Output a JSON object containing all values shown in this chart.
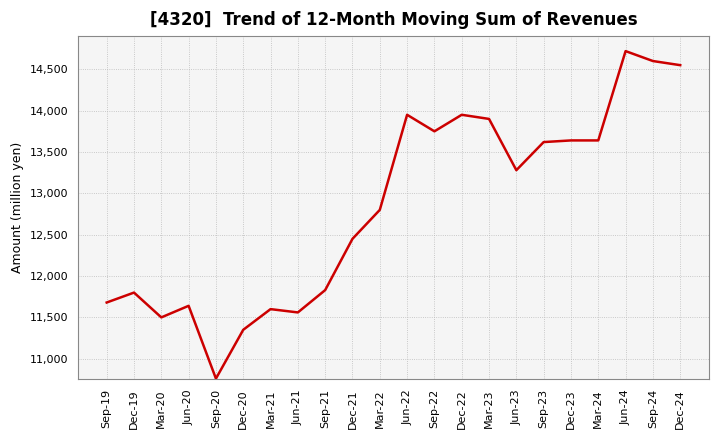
{
  "title": "[4320]  Trend of 12-Month Moving Sum of Revenues",
  "ylabel": "Amount (million yen)",
  "line_color": "#cc0000",
  "background_color": "#ffffff",
  "plot_bg_color": "#f5f5f5",
  "grid_color": "#bbbbbb",
  "x_labels": [
    "Sep-19",
    "Dec-19",
    "Mar-20",
    "Jun-20",
    "Sep-20",
    "Dec-20",
    "Mar-21",
    "Jun-21",
    "Sep-21",
    "Dec-21",
    "Mar-22",
    "Jun-22",
    "Sep-22",
    "Dec-22",
    "Mar-23",
    "Jun-23",
    "Sep-23",
    "Dec-23",
    "Mar-24",
    "Jun-24",
    "Sep-24",
    "Dec-24"
  ],
  "values": [
    11680,
    11800,
    11500,
    11640,
    10760,
    11350,
    11600,
    11560,
    11830,
    12450,
    12800,
    13950,
    13750,
    13950,
    13900,
    13280,
    13620,
    13640,
    13640,
    14720,
    14600,
    14550
  ],
  "ylim_min": 10750,
  "ylim_max": 14900,
  "yticks": [
    11000,
    11500,
    12000,
    12500,
    13000,
    13500,
    14000,
    14500
  ],
  "title_fontsize": 12,
  "tick_fontsize": 8,
  "ylabel_fontsize": 9,
  "linewidth": 1.8
}
